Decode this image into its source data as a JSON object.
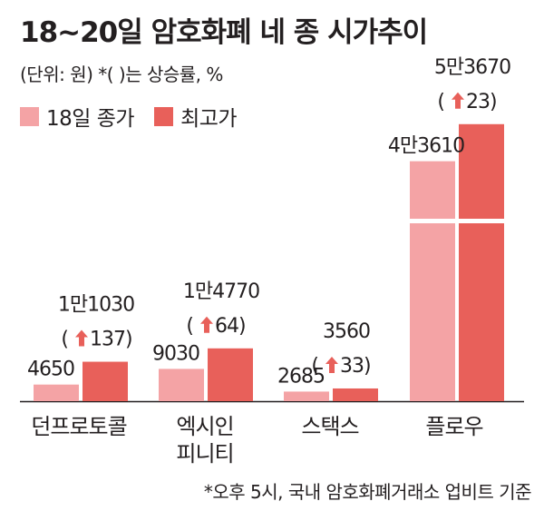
{
  "title": "18~20일 암호화폐 네 종 시가추이",
  "subtitle": "(단위: 원)  *(  )는 상승률, %",
  "footnote": "*오후 5시, 국내 암호화폐거래소 업비트 기준",
  "colors": {
    "close": "#f4a3a5",
    "high": "#e8605a",
    "arrow": "#e8605a",
    "text": "#231f20"
  },
  "chart_data": {
    "type": "bar",
    "legend": [
      "18일 종가",
      "최고가"
    ],
    "categories": [
      [
        "던프로토콜"
      ],
      [
        "엑시인",
        "피니티"
      ],
      [
        "스택스"
      ],
      [
        "플로우"
      ]
    ],
    "series": [
      {
        "name": "18일 종가",
        "values": [
          4650,
          9030,
          2685,
          43610
        ],
        "labels": [
          "4650",
          "9030",
          "2685",
          "4만3610"
        ]
      },
      {
        "name": "최고가",
        "values": [
          11030,
          14770,
          3560,
          53670
        ],
        "labels": [
          "1만1030",
          "1만4770",
          "3560",
          "5만3670"
        ],
        "increase_pct": [
          "137",
          "64",
          "33",
          "23"
        ]
      }
    ],
    "axis_break": true
  }
}
